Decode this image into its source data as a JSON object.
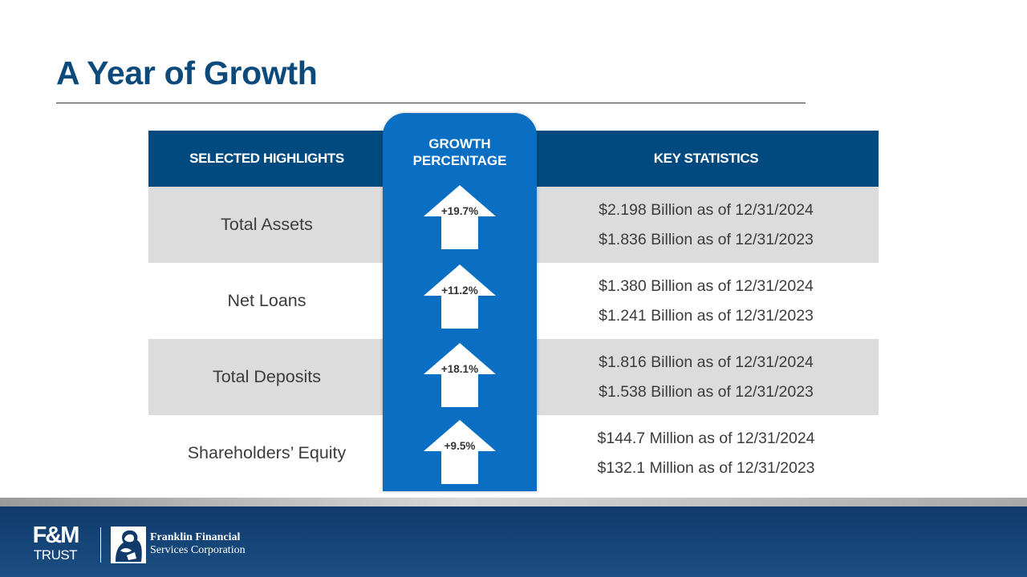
{
  "title": "A Year of Growth",
  "headers": {
    "highlights": "SELECTED HIGHLIGHTS",
    "growth_line1": "GROWTH",
    "growth_line2": "PERCENTAGE",
    "stats": "KEY STATISTICS"
  },
  "rows": [
    {
      "label": "Total Assets",
      "growth": "+19.7%",
      "stat_2024": "$2.198 Billion as of 12/31/2024",
      "stat_2023": "$1.836 Billion as of 12/31/2023"
    },
    {
      "label": "Net Loans",
      "growth": "+11.2%",
      "stat_2024": "$1.380 Billion as of 12/31/2024",
      "stat_2023": "$1.241 Billion as of 12/31/2023"
    },
    {
      "label": "Total Deposits",
      "growth": "+18.1%",
      "stat_2024": "$1.816 Billion as of 12/31/2024",
      "stat_2023": "$1.538 Billion as of 12/31/2023"
    },
    {
      "label": "Shareholders’ Equity",
      "growth": "+9.5%",
      "stat_2024": "$144.7 Million as of 12/31/2024",
      "stat_2023": "$132.1 Million as of 12/31/2023"
    }
  ],
  "footer": {
    "logo_fm": "F&M",
    "logo_trust": "TRUST",
    "logo_ff_line1": "Franklin Financial",
    "logo_ff_line2": "Services Corporation"
  },
  "colors": {
    "title": "#0d4a7c",
    "header_bg": "#004a80",
    "growth_column": "#0a6fc2",
    "row_shade": "#dcdcdc",
    "footer_bg": "#1b4e83"
  },
  "icons": {
    "growth_arrow": "up-arrow-icon",
    "ff_logo": "franklin-portrait-logo"
  }
}
